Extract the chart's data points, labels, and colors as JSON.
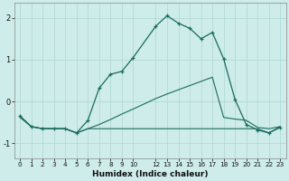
{
  "xlabel": "Humidex (Indice chaleur)",
  "bg_color": "#cdecea",
  "line_color": "#1a6b5e",
  "grid_color": "#aed6d2",
  "xlim": [
    -0.5,
    23.5
  ],
  "ylim": [
    -1.35,
    2.35
  ],
  "yticks": [
    -1,
    0,
    1,
    2
  ],
  "xticks": [
    0,
    1,
    2,
    3,
    4,
    5,
    6,
    7,
    8,
    9,
    10,
    12,
    13,
    14,
    15,
    16,
    17,
    18,
    19,
    20,
    21,
    22,
    23
  ],
  "curve_x": [
    0,
    1,
    2,
    3,
    4,
    5,
    6,
    7,
    8,
    9,
    10,
    12,
    13,
    14,
    15,
    16,
    17,
    18,
    19,
    20,
    21,
    22,
    23
  ],
  "curve_y": [
    -0.35,
    -0.6,
    -0.65,
    -0.65,
    -0.65,
    -0.75,
    -0.45,
    0.32,
    0.65,
    0.72,
    1.05,
    1.8,
    2.05,
    1.87,
    1.75,
    1.5,
    1.65,
    1.02,
    0.05,
    -0.55,
    -0.68,
    -0.75,
    -0.62
  ],
  "diag_x": [
    0,
    1,
    2,
    3,
    4,
    5,
    6,
    7,
    8,
    9,
    10,
    12,
    13,
    14,
    15,
    16,
    17,
    18,
    19,
    20,
    21,
    22,
    23
  ],
  "diag_y": [
    -0.38,
    -0.6,
    -0.65,
    -0.65,
    -0.65,
    -0.75,
    -0.65,
    -0.55,
    -0.43,
    -0.3,
    -0.18,
    0.07,
    0.18,
    0.28,
    0.38,
    0.48,
    0.58,
    -0.38,
    -0.42,
    -0.45,
    -0.62,
    -0.65,
    -0.6
  ],
  "flat_x": [
    0,
    1,
    2,
    3,
    4,
    5,
    6,
    7,
    8,
    9,
    10,
    12,
    13,
    14,
    15,
    16,
    17,
    18,
    19,
    20,
    21,
    22,
    23
  ],
  "flat_y": [
    -0.35,
    -0.6,
    -0.65,
    -0.65,
    -0.65,
    -0.75,
    -0.65,
    -0.65,
    -0.65,
    -0.65,
    -0.65,
    -0.65,
    -0.65,
    -0.65,
    -0.65,
    -0.65,
    -0.65,
    -0.65,
    -0.65,
    -0.65,
    -0.65,
    -0.75,
    -0.6
  ]
}
